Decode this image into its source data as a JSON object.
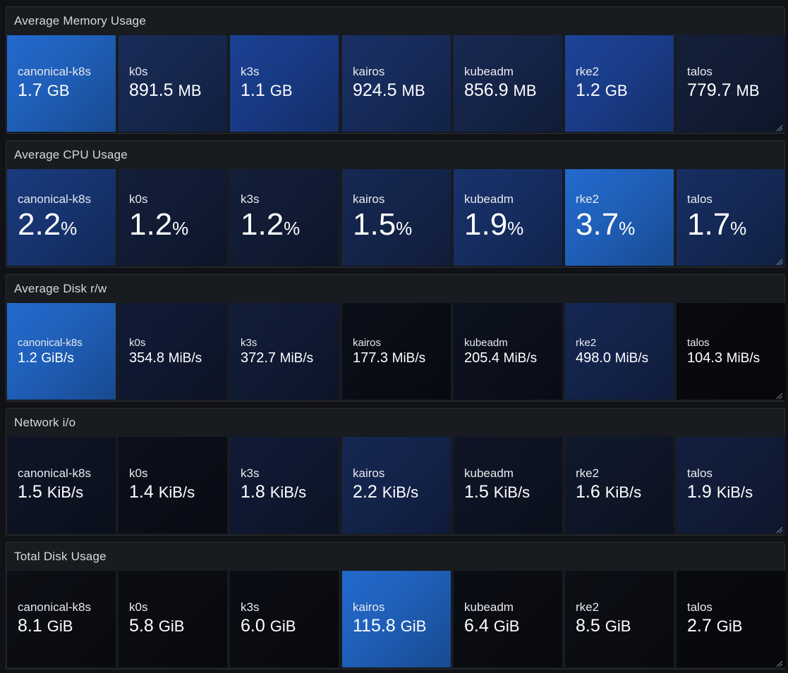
{
  "panels": [
    {
      "title": "Average Memory Usage",
      "size": "m",
      "tiles": [
        {
          "name": "canonical-k8s",
          "value": "1.7",
          "unit": "GB",
          "color": "#1f5fb8"
        },
        {
          "name": "k0s",
          "value": "891.5",
          "unit": "MB",
          "color": "#16274f"
        },
        {
          "name": "k3s",
          "value": "1.1",
          "unit": "GB",
          "color": "#183a84"
        },
        {
          "name": "kairos",
          "value": "924.5",
          "unit": "MB",
          "color": "#172b5a"
        },
        {
          "name": "kubeadm",
          "value": "856.9",
          "unit": "MB",
          "color": "#152448"
        },
        {
          "name": "rke2",
          "value": "1.2",
          "unit": "GB",
          "color": "#1a3c88"
        },
        {
          "name": "talos",
          "value": "779.7",
          "unit": "MB",
          "color": "#121c34"
        }
      ]
    },
    {
      "title": "Average CPU Usage",
      "size": "l",
      "tiles": [
        {
          "name": "canonical-k8s",
          "value": "2.2",
          "unit": "%",
          "color": "#173470"
        },
        {
          "name": "k0s",
          "value": "1.2",
          "unit": "%",
          "color": "#111b34"
        },
        {
          "name": "k3s",
          "value": "1.2",
          "unit": "%",
          "color": "#111b34"
        },
        {
          "name": "kairos",
          "value": "1.5",
          "unit": "%",
          "color": "#14244a"
        },
        {
          "name": "kubeadm",
          "value": "1.9",
          "unit": "%",
          "color": "#162d60"
        },
        {
          "name": "rke2",
          "value": "3.7",
          "unit": "%",
          "color": "#1f5fb8"
        },
        {
          "name": "talos",
          "value": "1.7",
          "unit": "%",
          "color": "#152956"
        }
      ]
    },
    {
      "title": "Average Disk r/w",
      "size": "s",
      "tiles": [
        {
          "name": "canonical-k8s",
          "value": "1.2",
          "unit": "GiB/s",
          "color": "#1f5fb8"
        },
        {
          "name": "k0s",
          "value": "354.8",
          "unit": "MiB/s",
          "color": "#0f1830"
        },
        {
          "name": "k3s",
          "value": "372.7",
          "unit": "MiB/s",
          "color": "#101a33"
        },
        {
          "name": "kairos",
          "value": "177.3",
          "unit": "MiB/s",
          "color": "#0a0d16"
        },
        {
          "name": "kubeadm",
          "value": "205.4",
          "unit": "MiB/s",
          "color": "#0b101c"
        },
        {
          "name": "rke2",
          "value": "498.0",
          "unit": "MiB/s",
          "color": "#13234a"
        },
        {
          "name": "talos",
          "value": "104.3",
          "unit": "MiB/s",
          "color": "#08090e"
        }
      ]
    },
    {
      "title": "Network i/o",
      "size": "m",
      "tiles": [
        {
          "name": "canonical-k8s",
          "value": "1.5",
          "unit": "KiB/s",
          "color": "#0d1322"
        },
        {
          "name": "k0s",
          "value": "1.4",
          "unit": "KiB/s",
          "color": "#0a0e18"
        },
        {
          "name": "k3s",
          "value": "1.8",
          "unit": "KiB/s",
          "color": "#0f1830"
        },
        {
          "name": "kairos",
          "value": "2.2",
          "unit": "KiB/s",
          "color": "#13234a"
        },
        {
          "name": "kubeadm",
          "value": "1.5",
          "unit": "KiB/s",
          "color": "#0d1322"
        },
        {
          "name": "rke2",
          "value": "1.6",
          "unit": "KiB/s",
          "color": "#0e1628"
        },
        {
          "name": "talos",
          "value": "1.9",
          "unit": "KiB/s",
          "color": "#111c38"
        }
      ]
    },
    {
      "title": "Total Disk Usage",
      "size": "m",
      "tiles": [
        {
          "name": "canonical-k8s",
          "value": "8.1",
          "unit": "GiB",
          "color": "#0b0d13"
        },
        {
          "name": "k0s",
          "value": "5.8",
          "unit": "GiB",
          "color": "#0a0c11"
        },
        {
          "name": "k3s",
          "value": "6.0",
          "unit": "GiB",
          "color": "#0a0c12"
        },
        {
          "name": "kairos",
          "value": "115.8",
          "unit": "GiB",
          "color": "#1f5fb8"
        },
        {
          "name": "kubeadm",
          "value": "6.4",
          "unit": "GiB",
          "color": "#0a0c12"
        },
        {
          "name": "rke2",
          "value": "8.5",
          "unit": "GiB",
          "color": "#0b0d13"
        },
        {
          "name": "talos",
          "value": "2.7",
          "unit": "GiB",
          "color": "#08090d"
        }
      ]
    }
  ]
}
